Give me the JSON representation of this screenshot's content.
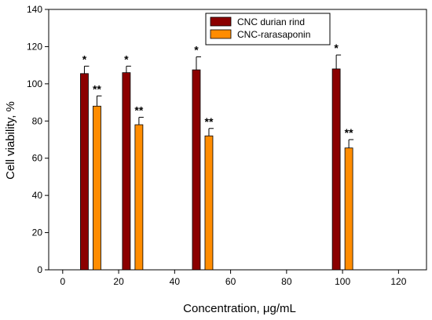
{
  "chart_data": {
    "type": "bar",
    "xlabel": "Concentration, μg/mL",
    "ylabel": "Cell viability, %",
    "xlim": [
      -5,
      130
    ],
    "ylim": [
      0,
      140
    ],
    "xticks": [
      0,
      20,
      40,
      60,
      80,
      100,
      120
    ],
    "yticks": [
      0,
      20,
      40,
      60,
      80,
      100,
      120,
      140
    ],
    "legend_position": "top-right",
    "grid": false,
    "categories": [
      10,
      25,
      50,
      100
    ],
    "series": [
      {
        "name": "CNC durian rind",
        "color": "#8b0000",
        "x": [
          10,
          25,
          50,
          100
        ],
        "values": [
          105.5,
          106,
          107.5,
          108
        ],
        "errors": [
          4,
          3.5,
          7,
          7.5
        ],
        "annotations": [
          "*",
          "*",
          "*",
          "*"
        ]
      },
      {
        "name": "CNC-rarasaponin",
        "color": "#ff8c00",
        "x": [
          10,
          25,
          50,
          100
        ],
        "values": [
          88,
          78,
          72,
          65.5
        ],
        "errors": [
          5.5,
          4,
          4,
          4.5
        ],
        "annotations": [
          "**",
          "**",
          "**",
          "**"
        ]
      }
    ]
  }
}
